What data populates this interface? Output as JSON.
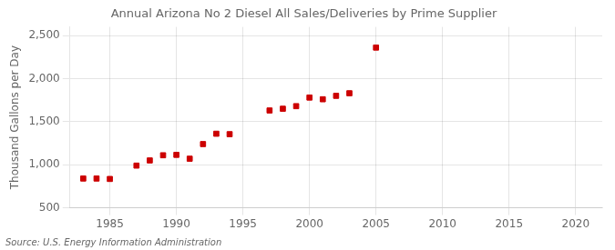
{
  "chart_data": {
    "type": "scatter",
    "title": "Annual Arizona No 2 Diesel All Sales/Deliveries by Prime Supplier",
    "ylabel": "Thousand Gallons per Day",
    "annotations": [
      "Source: U.S. Energy Information Administration"
    ],
    "x": [
      1983,
      1984,
      1985,
      1987,
      1988,
      1989,
      1990,
      1991,
      1992,
      1993,
      1994,
      1997,
      1998,
      1999,
      2000,
      2001,
      2002,
      2003,
      2005
    ],
    "values": [
      840,
      840,
      835,
      990,
      1050,
      1110,
      1115,
      1070,
      1240,
      1360,
      1355,
      1630,
      1650,
      1680,
      1780,
      1760,
      1800,
      1830,
      2360
    ],
    "color": "#cc0000",
    "marker": "square",
    "xlim": [
      1982,
      2022
    ],
    "ylim": [
      500,
      2600
    ],
    "xticks": [
      1985,
      1990,
      1995,
      2000,
      2005,
      2010,
      2015,
      2020
    ],
    "yticks": [
      500,
      {
        "value": 1000,
        "label": "1,000"
      },
      {
        "value": 1500,
        "label": "1,500"
      },
      {
        "value": 2000,
        "label": "2,000"
      },
      {
        "value": 2500,
        "label": "2,500"
      }
    ],
    "grid": true
  }
}
